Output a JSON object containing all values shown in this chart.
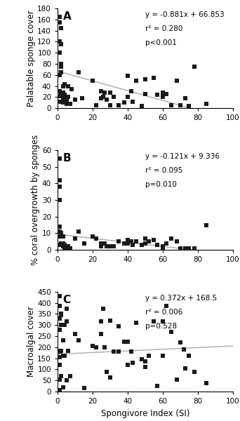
{
  "panel_A": {
    "label": "A",
    "ylabel": "Palatable sponge cover",
    "ylim": [
      0,
      180
    ],
    "yticks": [
      0,
      20,
      40,
      60,
      80,
      100,
      120,
      140,
      160,
      180
    ],
    "equation": "y = -0.881x + 66.853",
    "r2": "r² = 0.280",
    "pval": "p<0.001",
    "slope": -0.881,
    "intercept": 66.853,
    "x": [
      1,
      1,
      1,
      1,
      1,
      1,
      1,
      1,
      2,
      2,
      2,
      2,
      2,
      2,
      3,
      3,
      3,
      3,
      3,
      3,
      3,
      4,
      4,
      4,
      5,
      5,
      5,
      6,
      6,
      7,
      8,
      10,
      12,
      14,
      20,
      22,
      25,
      25,
      26,
      27,
      28,
      30,
      30,
      32,
      35,
      38,
      40,
      40,
      42,
      43,
      45,
      48,
      50,
      50,
      55,
      57,
      60,
      60,
      62,
      65,
      68,
      70,
      73,
      75,
      78,
      85
    ],
    "y": [
      165,
      155,
      120,
      100,
      60,
      30,
      22,
      12,
      145,
      115,
      80,
      75,
      65,
      25,
      40,
      28,
      22,
      20,
      15,
      12,
      10,
      43,
      24,
      12,
      18,
      10,
      8,
      40,
      20,
      8,
      35,
      15,
      65,
      18,
      50,
      5,
      30,
      18,
      20,
      28,
      15,
      28,
      5,
      20,
      5,
      10,
      58,
      20,
      30,
      12,
      50,
      4,
      52,
      25,
      55,
      24,
      28,
      20,
      25,
      5,
      50,
      5,
      18,
      4,
      75,
      8
    ]
  },
  "panel_B": {
    "label": "B",
    "ylabel": "% coral overgrowth by sponges",
    "ylim": [
      0,
      60
    ],
    "yticks": [
      0,
      10,
      20,
      30,
      40,
      50,
      60
    ],
    "equation": "y = -0.121x + 9.336",
    "r2": "r² = 0.095",
    "pval": "p=0.010",
    "slope": -0.121,
    "intercept": 9.336,
    "x": [
      1,
      1,
      1,
      1,
      1,
      1,
      1,
      1,
      2,
      2,
      2,
      2,
      2,
      2,
      2,
      3,
      3,
      3,
      4,
      4,
      4,
      5,
      5,
      6,
      7,
      10,
      12,
      15,
      20,
      22,
      25,
      25,
      27,
      28,
      30,
      32,
      35,
      38,
      40,
      40,
      42,
      43,
      45,
      48,
      50,
      50,
      52,
      55,
      57,
      60,
      60,
      62,
      65,
      68,
      70,
      73,
      75,
      78,
      85
    ],
    "y": [
      55,
      42,
      38,
      30,
      14,
      11,
      8,
      3,
      10,
      10,
      9,
      8,
      4,
      3,
      3,
      8,
      4,
      2,
      3,
      2,
      1,
      2,
      1,
      2,
      1,
      7,
      11,
      4,
      8,
      7,
      4,
      2,
      4,
      2,
      2,
      2,
      5,
      4,
      6,
      4,
      5,
      3,
      5,
      3,
      7,
      4,
      5,
      6,
      3,
      2,
      1,
      4,
      7,
      5,
      1,
      1,
      1,
      1,
      15
    ]
  },
  "panel_C": {
    "label": "C",
    "ylabel": "Macroalgal cover",
    "xlabel": "Spongivore Index (SI)",
    "ylim": [
      0,
      450
    ],
    "yticks": [
      0,
      50,
      100,
      150,
      200,
      250,
      300,
      350,
      400,
      450
    ],
    "equation": "y = 0.372x + 168.5",
    "r2": "r² = 0.006",
    "pval": "p=0.528",
    "slope": 0.372,
    "intercept": 168.5,
    "x": [
      1,
      1,
      1,
      1,
      1,
      1,
      1,
      1,
      1,
      1,
      2,
      2,
      2,
      2,
      2,
      3,
      3,
      3,
      4,
      4,
      5,
      5,
      5,
      6,
      7,
      10,
      12,
      15,
      20,
      22,
      25,
      25,
      26,
      27,
      28,
      30,
      30,
      32,
      35,
      35,
      38,
      40,
      40,
      42,
      43,
      45,
      48,
      50,
      50,
      52,
      55,
      57,
      60,
      60,
      62,
      65,
      68,
      70,
      72,
      73,
      75,
      78,
      85
    ],
    "y": [
      430,
      385,
      330,
      280,
      185,
      180,
      155,
      120,
      55,
      5,
      350,
      345,
      300,
      185,
      70,
      230,
      160,
      20,
      300,
      160,
      375,
      315,
      50,
      185,
      70,
      260,
      230,
      15,
      205,
      200,
      315,
      260,
      375,
      200,
      90,
      320,
      63,
      180,
      295,
      180,
      225,
      225,
      120,
      180,
      130,
      310,
      145,
      135,
      110,
      160,
      315,
      25,
      315,
      160,
      385,
      270,
      55,
      220,
      190,
      105,
      160,
      90,
      38
    ]
  },
  "xlim": [
    0,
    100
  ],
  "xticks": [
    0,
    20,
    40,
    60,
    80,
    100
  ],
  "line_color": "#aaaaaa",
  "marker_color": "#1a1a1a",
  "marker_size": 14,
  "text_fontsize": 7.5,
  "label_fontsize": 8.5,
  "tick_fontsize": 7.5,
  "panel_label_fontsize": 11
}
